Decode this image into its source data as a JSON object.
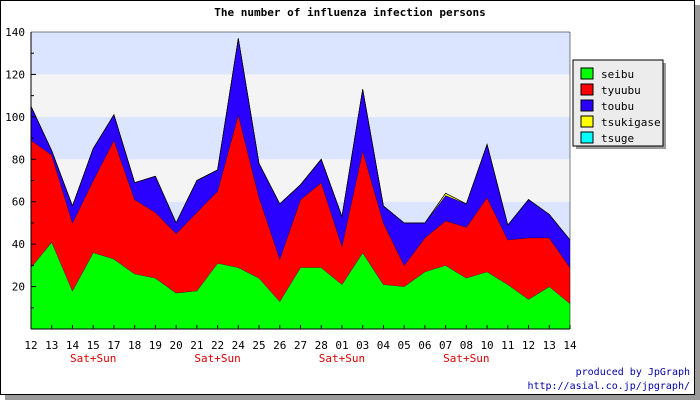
{
  "chart_data": {
    "type": "area",
    "stacked": true,
    "title": "The number of influenza infection persons",
    "xlabel": "",
    "ylabel": "",
    "ylim": [
      0,
      140
    ],
    "yticks": [
      20,
      40,
      60,
      80,
      100,
      120,
      140
    ],
    "grid": true,
    "legend_position": "right",
    "categories": [
      "12",
      "13",
      "14",
      "15",
      "17",
      "18",
      "19",
      "20",
      "21",
      "22",
      "24",
      "25",
      "26",
      "27",
      "28",
      "01",
      "03",
      "04",
      "05",
      "06",
      "07",
      "08",
      "10",
      "11",
      "12",
      "13",
      "14"
    ],
    "weekend_marks": [
      {
        "index": 3,
        "label": "Sat+Sun"
      },
      {
        "index": 9,
        "label": "Sat+Sun"
      },
      {
        "index": 15,
        "label": "Sat+Sun"
      },
      {
        "index": 21,
        "label": "Sat+Sun"
      }
    ],
    "series": [
      {
        "name": "seibu",
        "color": "#00ff00",
        "values": [
          29,
          41,
          18,
          36,
          33,
          26,
          24,
          17,
          18,
          31,
          29,
          24,
          13,
          29,
          29,
          21,
          36,
          21,
          20,
          27,
          30,
          24,
          27,
          21,
          14,
          20,
          12
        ]
      },
      {
        "name": "tyuubu",
        "color": "#ff0000",
        "values": [
          60,
          41,
          32,
          34,
          56,
          35,
          31,
          28,
          37,
          34,
          72,
          38,
          20,
          32,
          40,
          18,
          48,
          29,
          10,
          16,
          21,
          24,
          35,
          21,
          29,
          23,
          17
        ]
      },
      {
        "name": "toubu",
        "color": "#2a00ff",
        "values": [
          16,
          2,
          8,
          15,
          12,
          8,
          17,
          5,
          15,
          10,
          36,
          16,
          26,
          7,
          11,
          14,
          29,
          8,
          20,
          7,
          12,
          11,
          25,
          7,
          18,
          11,
          13
        ]
      },
      {
        "name": "tsukigase",
        "color": "#ffff00",
        "values": [
          0,
          0,
          0,
          0,
          0,
          0,
          0,
          0,
          0,
          0,
          0,
          0,
          0,
          0,
          0,
          0,
          0,
          0,
          0,
          0,
          1,
          0,
          0,
          0,
          0,
          0,
          0
        ]
      },
      {
        "name": "tsuge",
        "color": "#00ffff",
        "values": [
          0,
          0,
          0,
          0,
          0,
          0,
          0,
          0,
          0,
          0,
          0,
          0,
          0,
          0,
          0,
          0,
          0,
          0,
          0,
          0,
          0,
          0,
          0,
          0,
          0,
          0,
          0
        ]
      }
    ]
  },
  "footer": {
    "credit": "produced by JpGraph",
    "url": "http://asial.co.jp/jpgraph/"
  },
  "colors": {
    "band_light": "#f4f4f4",
    "band_blue": "#dbe5ff",
    "weekend_label": "#dd0000",
    "footer_text": "#0000aa"
  }
}
